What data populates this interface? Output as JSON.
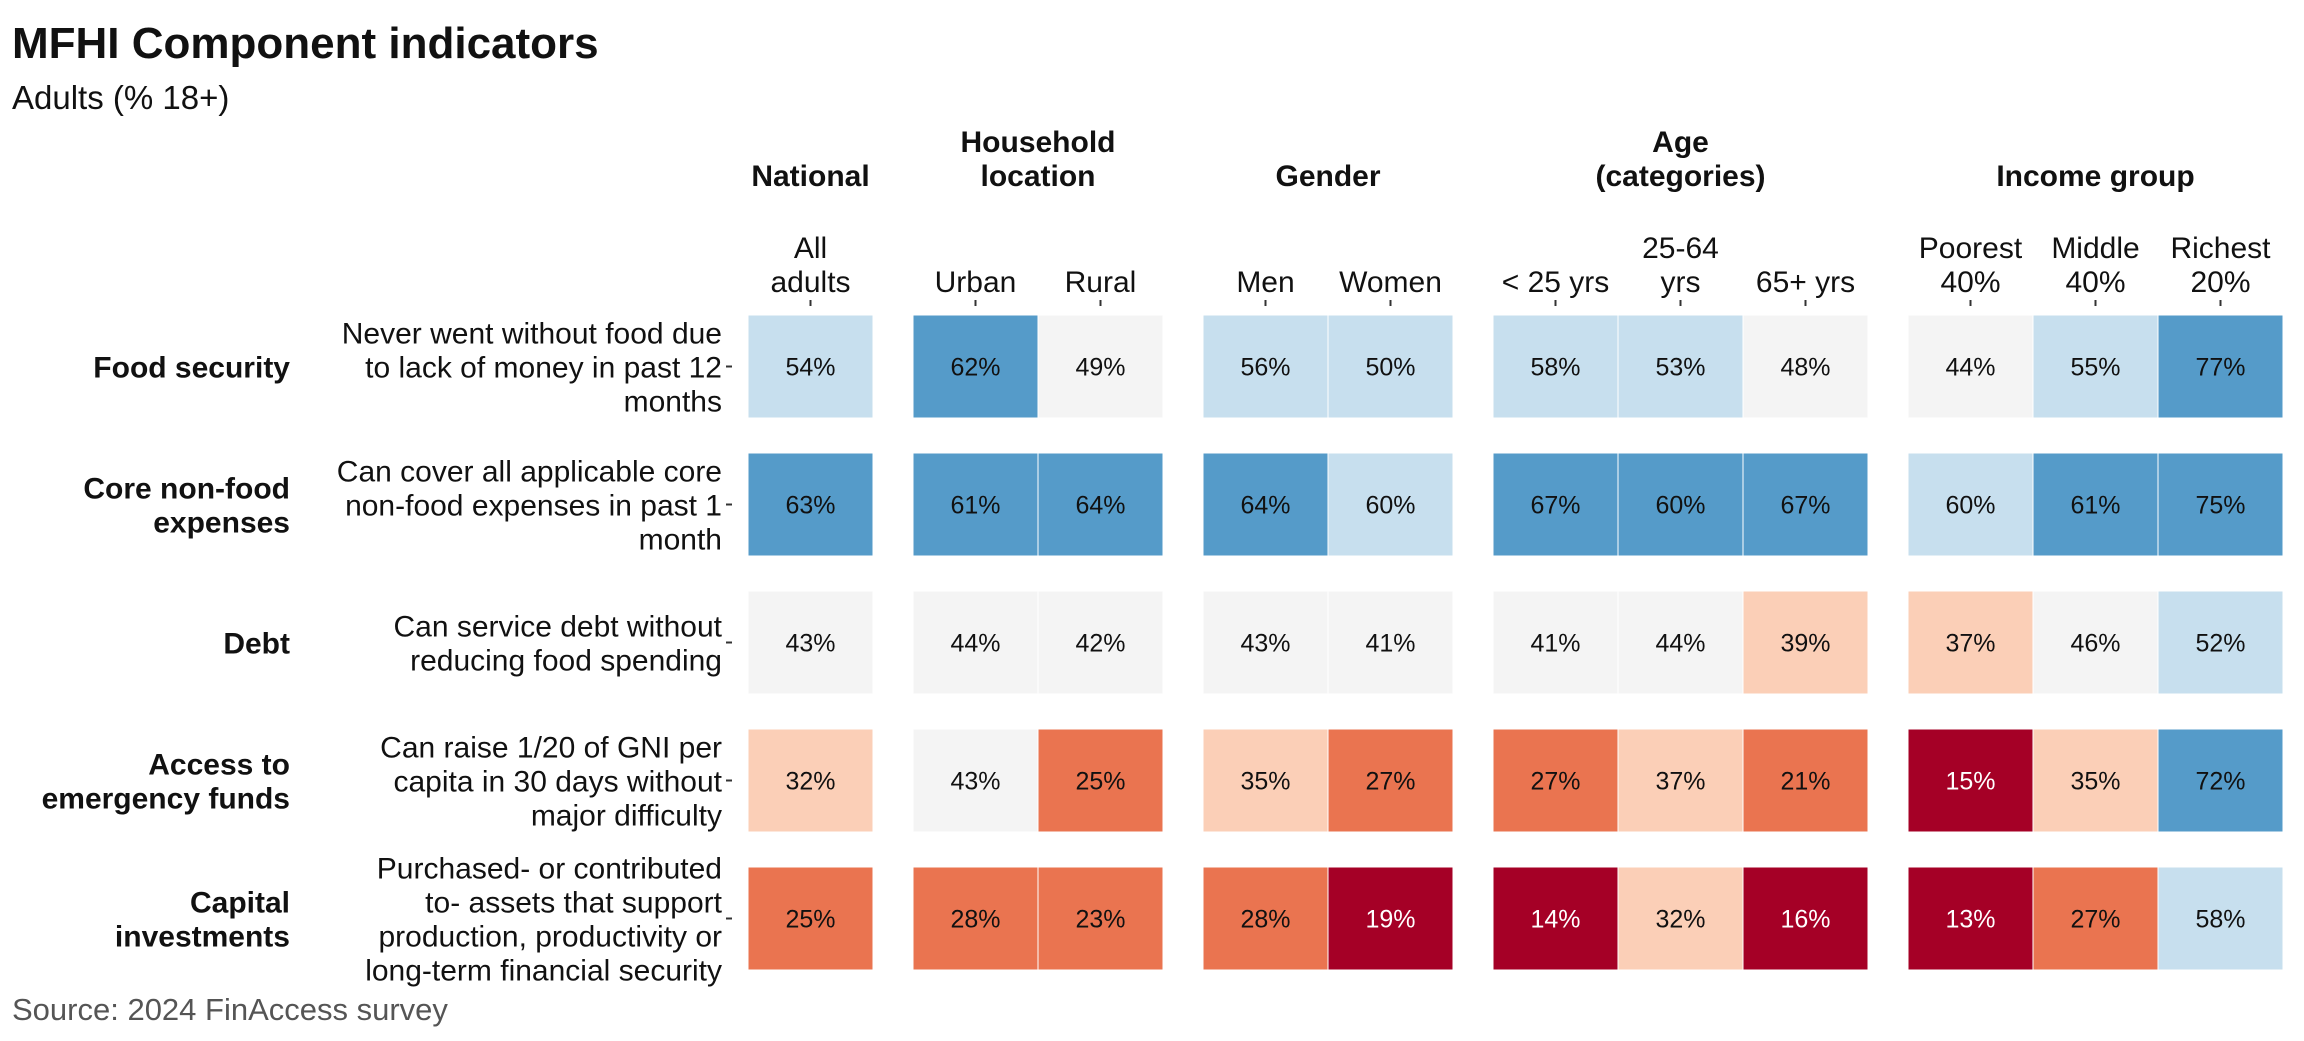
{
  "title": "MFHI Component indicators",
  "subtitle": "Adults (% 18+)",
  "source": "Source: 2024 FinAccess survey",
  "palette": {
    "dark_red": "#a50026",
    "orange": "#ea7450",
    "peach": "#fbcfb7",
    "light_gray": "#f4f4f4",
    "light_blue": "#c7dfee",
    "blue": "#559bc9",
    "text_dark": "#111111",
    "text_light": "#ffffff"
  },
  "chart_data": {
    "type": "heatmap",
    "groups": [
      {
        "label": "National",
        "columns": [
          "All\nadults"
        ]
      },
      {
        "label": "Household\nlocation",
        "columns": [
          "Urban",
          "Rural"
        ]
      },
      {
        "label": "Gender",
        "columns": [
          "Men",
          "Women"
        ]
      },
      {
        "label": "Age\n(categories)",
        "columns": [
          "< 25 yrs",
          "25-64\nyrs",
          "65+ yrs"
        ]
      },
      {
        "label": "Income group",
        "columns": [
          "Poorest\n40%",
          "Middle\n40%",
          "Richest\n20%"
        ]
      }
    ],
    "rows": [
      {
        "category": "Food security",
        "indicator": "Never went without food due\nto lack of money in past 12\nmonths",
        "values": [
          54,
          62,
          49,
          56,
          50,
          58,
          53,
          48,
          44,
          55,
          77
        ],
        "colors": [
          "light_blue",
          "blue",
          "light_gray",
          "light_blue",
          "light_blue",
          "light_blue",
          "light_blue",
          "light_gray",
          "light_gray",
          "light_blue",
          "blue"
        ]
      },
      {
        "category": "Core non-food\nexpenses",
        "indicator": "Can cover all applicable core\nnon-food expenses in past 1\nmonth",
        "values": [
          63,
          61,
          64,
          64,
          60,
          67,
          60,
          67,
          60,
          61,
          75
        ],
        "colors": [
          "blue",
          "blue",
          "blue",
          "blue",
          "light_blue",
          "blue",
          "blue",
          "blue",
          "light_blue",
          "blue",
          "blue"
        ]
      },
      {
        "category": "Debt",
        "indicator": "Can service debt without\nreducing food spending",
        "values": [
          43,
          44,
          42,
          43,
          41,
          41,
          44,
          39,
          37,
          46,
          52
        ],
        "colors": [
          "light_gray",
          "light_gray",
          "light_gray",
          "light_gray",
          "light_gray",
          "light_gray",
          "light_gray",
          "peach",
          "peach",
          "light_gray",
          "light_blue"
        ]
      },
      {
        "category": "Access to\nemergency funds",
        "indicator": "Can raise 1/20 of GNI per\ncapita in 30 days without\nmajor difficulty",
        "values": [
          32,
          43,
          25,
          35,
          27,
          27,
          37,
          21,
          15,
          35,
          72
        ],
        "colors": [
          "peach",
          "light_gray",
          "orange",
          "peach",
          "orange",
          "orange",
          "peach",
          "orange",
          "dark_red",
          "peach",
          "blue"
        ]
      },
      {
        "category": "Capital\ninvestments",
        "indicator": "Purchased- or contributed\nto- assets that support\nproduction, productivity or\nlong-term financial security",
        "values": [
          25,
          28,
          23,
          28,
          19,
          14,
          32,
          16,
          13,
          27,
          58
        ],
        "colors": [
          "orange",
          "orange",
          "orange",
          "orange",
          "dark_red",
          "dark_red",
          "peach",
          "dark_red",
          "dark_red",
          "orange",
          "light_blue"
        ]
      }
    ]
  }
}
